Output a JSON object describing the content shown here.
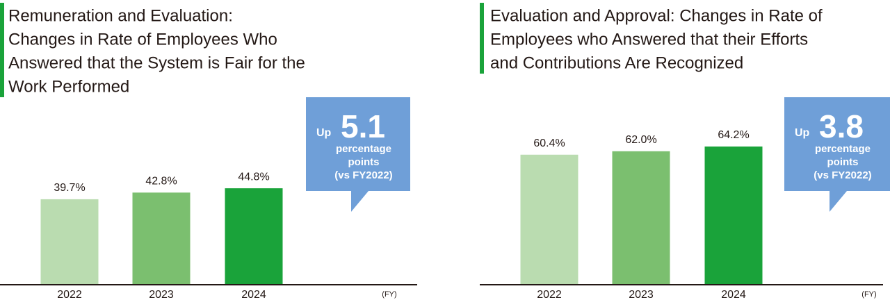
{
  "chart_data": [
    {
      "type": "bar",
      "title": [
        "Remuneration and Evaluation:",
        "Changes in Rate of Employees Who",
        "Answered that the System is Fair for the",
        "Work Performed"
      ],
      "categories": [
        "2022",
        "2023",
        "2024"
      ],
      "values": [
        39.7,
        42.8,
        44.8
      ],
      "value_labels": [
        "39.7%",
        "42.8%",
        "44.8%"
      ],
      "colors": [
        "#badcb0",
        "#7bbf6f",
        "#1aa33a"
      ],
      "x_unit": "(FY)",
      "callout": {
        "prefix": "Up",
        "value": 5.1,
        "lines": [
          "percentage",
          "points",
          "(vs FY2022)"
        ]
      }
    },
    {
      "type": "bar",
      "title": [
        "Evaluation and Approval: Changes in Rate of",
        "Employees who Answered that their Efforts",
        "and Contributions Are Recognized"
      ],
      "categories": [
        "2022",
        "2023",
        "2024"
      ],
      "values": [
        60.4,
        62.0,
        64.2
      ],
      "value_labels": [
        "60.4%",
        "62.0%",
        "64.2%"
      ],
      "colors": [
        "#badcb0",
        "#7bbf6f",
        "#1aa33a"
      ],
      "x_unit": "(FY)",
      "callout": {
        "prefix": "Up",
        "value": 3.8,
        "lines": [
          "percentage",
          "points",
          "(vs FY2022)"
        ]
      }
    }
  ]
}
